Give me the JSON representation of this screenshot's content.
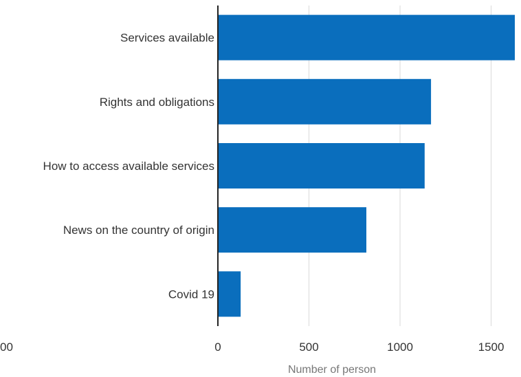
{
  "chart_data": {
    "type": "bar",
    "orientation": "horizontal",
    "categories": [
      "Services available",
      "Rights and obligations",
      "How to access available services",
      "News on the country of origin",
      "Covid 19"
    ],
    "values": [
      1630,
      1170,
      1135,
      815,
      125
    ],
    "xlabel": "Number of person",
    "xlim": [
      0,
      1630
    ],
    "x_ticks": [
      "0",
      "500",
      "1000",
      "1500"
    ],
    "partial_tick_label": "00",
    "grid": true,
    "colors": {
      "bar": "#0a6ebd",
      "grid": "#d9d9d9",
      "axis": "#222222"
    }
  }
}
